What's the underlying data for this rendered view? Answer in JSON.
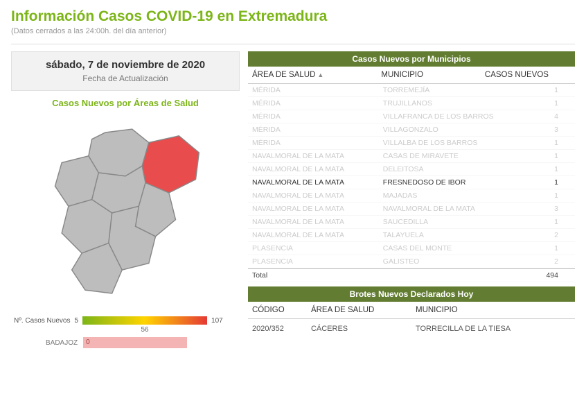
{
  "header": {
    "title": "Información Casos COVID-19 en Extremadura",
    "subtitle": "(Datos cerrados a las 24:00h. del día anterior)"
  },
  "date_box": {
    "date": "sábado, 7 de noviembre de 2020",
    "label": "Fecha de Actualización"
  },
  "map": {
    "title": "Casos Nuevos por Áreas de Salud",
    "region_fill": "#bdbdbd",
    "region_stroke": "#888888",
    "highlight_fill": "#e84c4c",
    "legend": {
      "label": "Nº. Casos Nuevos",
      "min": "5",
      "mid": "56",
      "max": "107",
      "gradient_start": "#7cb518",
      "gradient_mid": "#ffd400",
      "gradient_end": "#e53935"
    },
    "bar_row": {
      "label": "BADAJOZ",
      "value": "0",
      "bar_color": "#f4b4b4"
    }
  },
  "cases_panel": {
    "title": "Casos Nuevos por Municipios",
    "columns": {
      "area": "ÁREA DE SALUD",
      "muni": "MUNICIPIO",
      "cases": "CASOS NUEVOS"
    },
    "rows": [
      {
        "area": "MÉRIDA",
        "muni": "TORREMEJÍA",
        "cases": "1",
        "active": false
      },
      {
        "area": "MÉRIDA",
        "muni": "TRUJILLANOS",
        "cases": "1",
        "active": false
      },
      {
        "area": "MÉRIDA",
        "muni": "VILLAFRANCA DE LOS BARROS",
        "cases": "4",
        "active": false
      },
      {
        "area": "MÉRIDA",
        "muni": "VILLAGONZALO",
        "cases": "3",
        "active": false
      },
      {
        "area": "MÉRIDA",
        "muni": "VILLALBA DE LOS BARROS",
        "cases": "1",
        "active": false
      },
      {
        "area": "NAVALMORAL DE LA MATA",
        "muni": "CASAS DE MIRAVETE",
        "cases": "1",
        "active": false
      },
      {
        "area": "NAVALMORAL DE LA MATA",
        "muni": "DELEITOSA",
        "cases": "1",
        "active": false
      },
      {
        "area": "NAVALMORAL DE LA MATA",
        "muni": "FRESNEDOSO DE IBOR",
        "cases": "1",
        "active": true
      },
      {
        "area": "NAVALMORAL DE LA MATA",
        "muni": "MAJADAS",
        "cases": "1",
        "active": false
      },
      {
        "area": "NAVALMORAL DE LA MATA",
        "muni": "NAVALMORAL DE LA MATA",
        "cases": "3",
        "active": false
      },
      {
        "area": "NAVALMORAL DE LA MATA",
        "muni": "SAUCEDILLA",
        "cases": "1",
        "active": false
      },
      {
        "area": "NAVALMORAL DE LA MATA",
        "muni": "TALAYUELA",
        "cases": "2",
        "active": false
      },
      {
        "area": "PLASENCIA",
        "muni": "CASAS DEL MONTE",
        "cases": "1",
        "active": false
      },
      {
        "area": "PLASENCIA",
        "muni": "GALISTEO",
        "cases": "2",
        "active": false
      }
    ],
    "total_label": "Total",
    "total_value": "494"
  },
  "brotes_panel": {
    "title": "Brotes Nuevos Declarados Hoy",
    "columns": {
      "codigo": "CÓDIGO",
      "area": "ÁREA DE SALUD",
      "muni": "MUNICIPIO"
    },
    "rows": [
      {
        "codigo": "2020/352",
        "area": "CÁCERES",
        "muni": "TORRECILLA DE LA TIESA"
      }
    ]
  },
  "colors": {
    "accent": "#7cb518",
    "panel_header": "#627d32"
  }
}
